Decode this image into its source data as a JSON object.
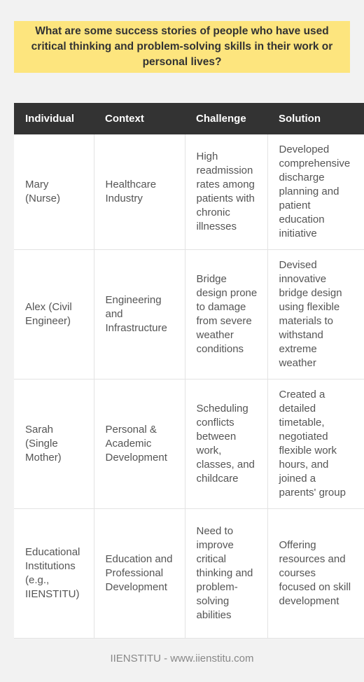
{
  "title": "What are some success stories of people who have used critical thinking and problem-solving skills in their work or personal lives?",
  "table": {
    "headers": [
      "Individual",
      "Context",
      "Challenge",
      "Solution"
    ],
    "rows": [
      {
        "individual": "Mary (Nurse)",
        "context": "Healthcare Industry",
        "challenge": "High readmission rates among patients with chronic illnesses",
        "solution": "Developed comprehensive discharge planning and patient education initiative"
      },
      {
        "individual": "Alex (Civil Engineer)",
        "context": "Engineering and Infrastructure",
        "challenge": "Bridge design prone to damage from severe weather conditions",
        "solution": "Devised innovative bridge design using flexible materials to withstand extreme weather"
      },
      {
        "individual": "Sarah (Single Mother)",
        "context": "Personal & Academic Development",
        "challenge": "Scheduling conflicts between work, classes, and childcare",
        "solution": "Created a detailed timetable, negotiated flexible work hours, and joined a parents' group"
      },
      {
        "individual": "Educational Institutions (e.g., IIENSTITU)",
        "context": "Education and Professional Development",
        "challenge": "Need to improve critical thinking and problem-solving abilities",
        "solution": "Offering resources and courses focused on skill development"
      }
    ]
  },
  "footer": "IIENSTITU - www.iienstitu.com",
  "colors": {
    "background": "#f2f2f2",
    "title_box": "#fde57e",
    "header_bg": "#333333"
  }
}
